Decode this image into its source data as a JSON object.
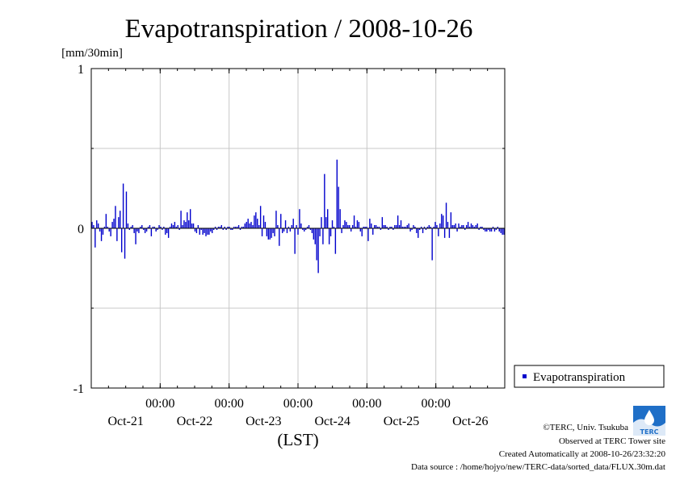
{
  "chart_data": {
    "type": "bar",
    "title": "Evapotranspiration / 2008-10-26",
    "ylabel": "[mm/30min]",
    "xlabel": "(LST)",
    "ylim": [
      -1,
      1
    ],
    "yticks": [
      {
        "value": 1,
        "label": "1"
      },
      {
        "value": 0,
        "label": "0"
      },
      {
        "value": -1,
        "label": "-1"
      }
    ],
    "xlim_days": [
      0,
      6
    ],
    "xticks": [
      {
        "day": 1,
        "time": "00:00",
        "date": "Oct-21"
      },
      {
        "day": 2,
        "time": "00:00",
        "date": "Oct-22"
      },
      {
        "day": 3,
        "time": "00:00",
        "date": "Oct-23"
      },
      {
        "day": 4,
        "time": "00:00",
        "date": "Oct-24"
      },
      {
        "day": 5,
        "time": "00:00",
        "date": "Oct-25"
      },
      {
        "day": 6,
        "time": "",
        "date": "Oct-26"
      }
    ],
    "grid": true,
    "legend_position": "right",
    "series": [
      {
        "name": "Evapotranspiration",
        "color": "#0000cc",
        "values": [
          0.04,
          0.02,
          -0.12,
          0.05,
          0.03,
          -0.02,
          -0.08,
          -0.04,
          0.01,
          0.09,
          0.01,
          -0.02,
          -0.05,
          0.04,
          0.06,
          0.14,
          -0.08,
          0.07,
          0.11,
          -0.15,
          0.28,
          -0.19,
          0.23,
          0.03,
          -0.01,
          0.01,
          0.02,
          -0.03,
          -0.1,
          -0.02,
          -0.03,
          0.01,
          0.02,
          -0.01,
          -0.03,
          -0.02,
          0.01,
          0.02,
          -0.05,
          0.01,
          0.01,
          -0.02,
          -0.01,
          0.02,
          0.01,
          -0.01,
          0.01,
          -0.04,
          -0.03,
          -0.06,
          0.01,
          0.03,
          0.02,
          0.04,
          0.01,
          0.02,
          -0.01,
          0.11,
          0.02,
          0.05,
          0.04,
          0.1,
          0.05,
          0.12,
          0.03,
          0.03,
          -0.02,
          -0.03,
          0.02,
          -0.04,
          -0.01,
          -0.04,
          -0.03,
          -0.05,
          -0.04,
          -0.04,
          -0.02,
          -0.03,
          -0.01,
          0.01,
          -0.01,
          0.01,
          0.01,
          0.02,
          -0.01,
          0.01,
          -0.01,
          0.01,
          0.01,
          -0.01,
          -0.01,
          0.01,
          0.01,
          0.01,
          0.02,
          -0.01,
          0.01,
          0.01,
          0.03,
          0.04,
          0.06,
          0.03,
          0.04,
          0.02,
          0.08,
          0.1,
          0.06,
          0.02,
          0.14,
          -0.05,
          0.08,
          0.04,
          -0.05,
          -0.07,
          -0.07,
          -0.06,
          -0.03,
          -0.05,
          0.11,
          0.02,
          -0.11,
          0.09,
          -0.03,
          -0.02,
          0.05,
          -0.03,
          0.01,
          -0.02,
          0.02,
          0.06,
          -0.16,
          0.02,
          -0.04,
          0.12,
          0.03,
          -0.01,
          -0.02,
          -0.01,
          0.01,
          0.02,
          -0.01,
          -0.03,
          -0.07,
          -0.1,
          -0.2,
          -0.28,
          -0.05,
          0.07,
          -0.1,
          0.34,
          0.07,
          0.12,
          -0.1,
          -0.05,
          0.05,
          0.01,
          -0.16,
          0.43,
          0.26,
          0.12,
          -0.03,
          0.02,
          0.05,
          0.04,
          0.02,
          0.02,
          -0.02,
          0.02,
          0.08,
          0.01,
          0.05,
          0.04,
          -0.02,
          -0.05,
          0.01,
          0.01,
          0.01,
          -0.08,
          0.06,
          0.03,
          -0.04,
          0.02,
          0.02,
          0.01,
          0.01,
          -0.01,
          0.07,
          0.02,
          0.02,
          0.01,
          -0.01,
          0.01,
          0.01,
          -0.01,
          0.02,
          0.02,
          0.08,
          0.02,
          0.05,
          0.01,
          0.01,
          0.01,
          0.02,
          0.03,
          -0.02,
          -0.01,
          0.02,
          0.01,
          -0.03,
          -0.06,
          -0.01,
          0.01,
          -0.03,
          0.01,
          -0.01,
          0.01,
          0.02,
          0.01,
          -0.2,
          0.01,
          0.04,
          0.02,
          -0.05,
          0.03,
          0.09,
          0.08,
          -0.06,
          0.16,
          0.04,
          -0.06,
          0.1,
          0.02,
          0.02,
          0.03,
          -0.02,
          0.03,
          0.01,
          0.02,
          0.02,
          -0.01,
          0.02,
          0.04,
          0.01,
          0.03,
          0.02,
          0.01,
          0.02,
          0.03,
          -0.01,
          0.01,
          0.01,
          -0.01,
          -0.02,
          -0.02,
          -0.01,
          -0.02,
          -0.02,
          0.01,
          -0.02,
          -0.01,
          0.01,
          -0.02,
          -0.03,
          -0.04,
          -0.04
        ]
      }
    ]
  },
  "credits": {
    "copyright": "©TERC, Univ. Tsukuba",
    "observed": "Observed at TERC Tower site",
    "created": "Created Automatically at 2008-10-26/23:32:20",
    "source": "Data source : /home/hojyo/new/TERC-data/sorted_data/FLUX.30m.dat"
  },
  "logo": {
    "text": "TERC",
    "color": "#1f6fc7"
  }
}
